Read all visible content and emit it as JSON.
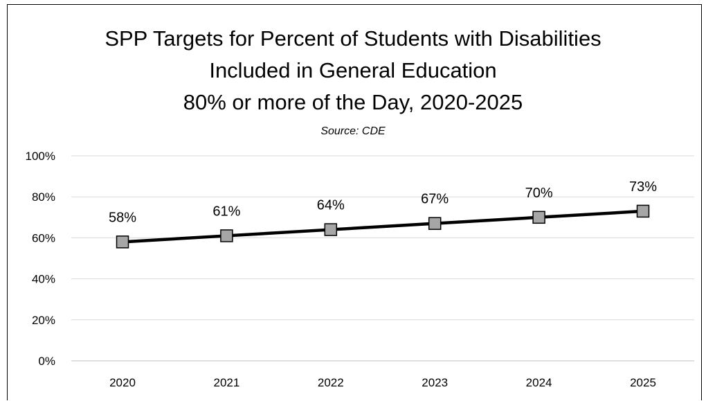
{
  "chart_data": {
    "type": "line",
    "title_lines": [
      "SPP Targets for Percent of Students with Disabilities",
      "Included in General Education",
      "80% or more of the Day, 2020-2025"
    ],
    "subtitle": "Source:  CDE",
    "categories": [
      "2020",
      "2021",
      "2022",
      "2023",
      "2024",
      "2025"
    ],
    "series": [
      {
        "values": [
          58,
          61,
          64,
          67,
          70,
          73
        ],
        "data_labels": [
          "58%",
          "61%",
          "64%",
          "67%",
          "70%",
          "73%"
        ],
        "line_color": "#000000",
        "marker": "square",
        "marker_color": "#a6a6a6"
      }
    ],
    "ylim": [
      0,
      100
    ],
    "y_ticks": [
      0,
      20,
      40,
      60,
      80,
      100
    ],
    "y_tick_labels": [
      "0%",
      "20%",
      "40%",
      "60%",
      "80%",
      "100%"
    ],
    "grid": true,
    "legend": "none"
  }
}
